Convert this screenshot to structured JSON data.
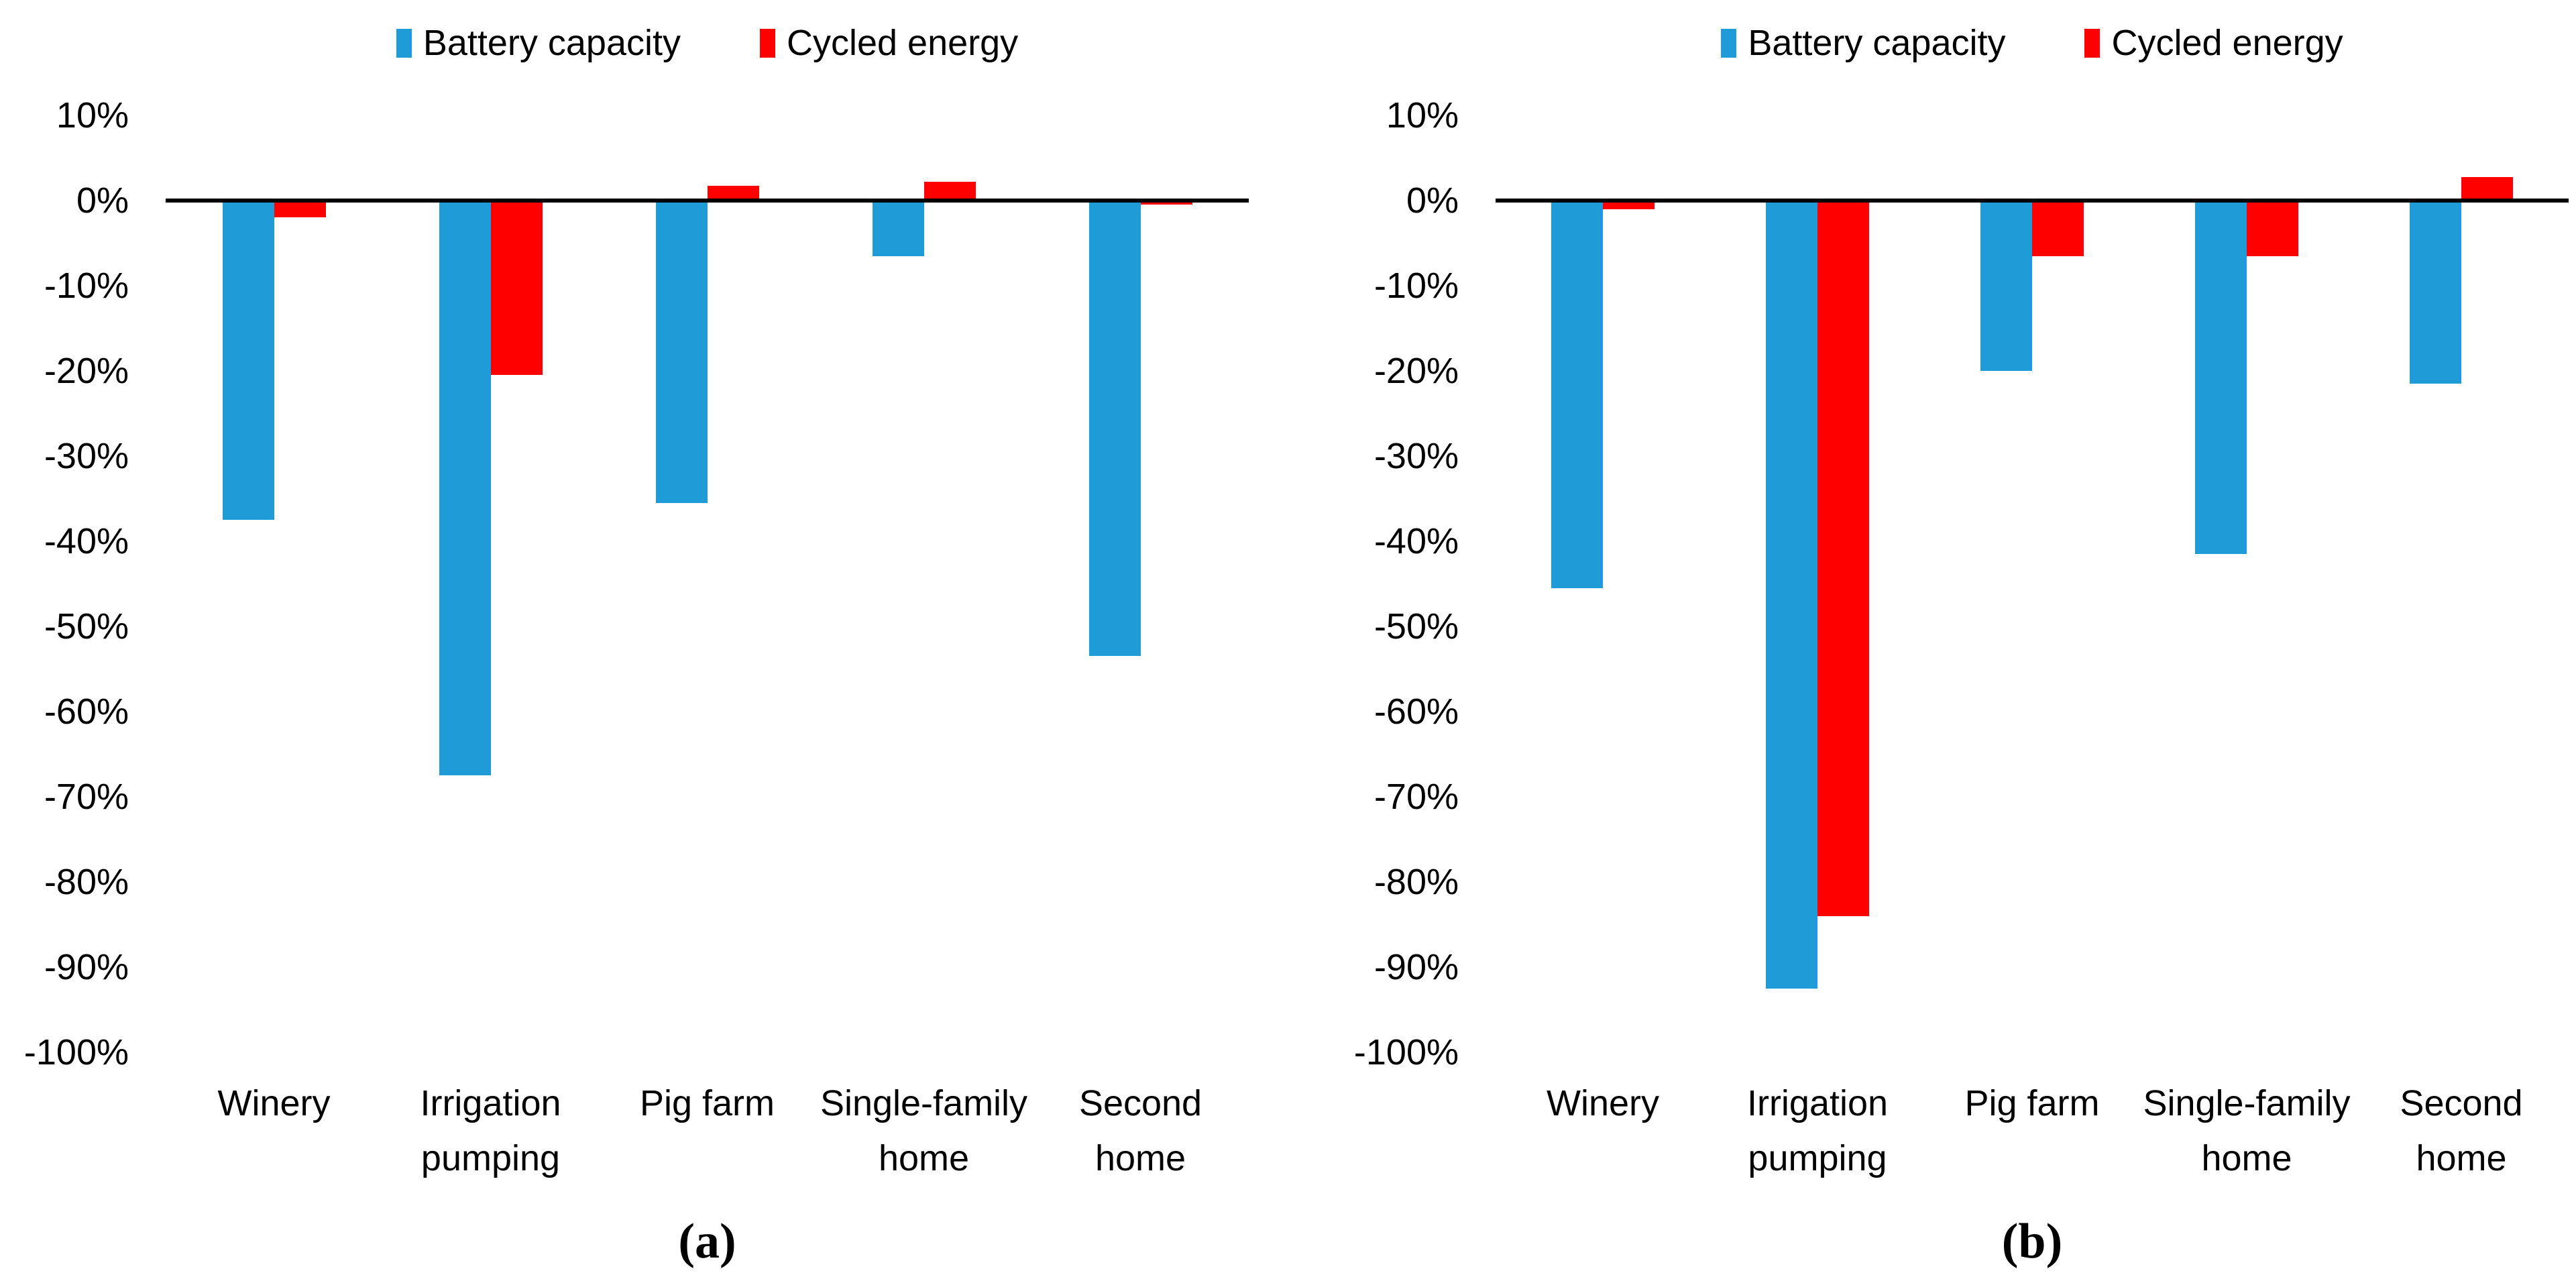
{
  "figure": {
    "background": "#ffffff",
    "axis_line_color": "#000000",
    "text_color": "#000000",
    "series_colors": {
      "battery_capacity": "#1F9BD7",
      "cycled_energy": "#FF0000"
    }
  },
  "legend": [
    {
      "label": "Battery capacity",
      "color": "#1F9BD7"
    },
    {
      "label": "Cycled energy",
      "color": "#FF0000"
    }
  ],
  "y_axis_ticks": [
    "10%",
    "0%",
    "-10%",
    "-20%",
    "-30%",
    "-40%",
    "-50%",
    "-60%",
    "-70%",
    "-80%",
    "-90%",
    "-100%"
  ],
  "categories_display": [
    "Winery",
    "Irrigation\npumping",
    "Pig farm",
    "Single-family\nhome",
    "Second\nhome"
  ],
  "chart_data": [
    {
      "type": "bar",
      "caption": "(a)",
      "title": "",
      "xlabel": "",
      "ylabel": "",
      "ylim": [
        -100,
        10
      ],
      "ytick_step": 10,
      "grid": false,
      "legend_position": "top-center",
      "zero_baseline": true,
      "categories": [
        "Winery",
        "Irrigation pumping",
        "Pig farm",
        "Single-family home",
        "Second home"
      ],
      "series": [
        {
          "name": "Battery capacity",
          "color": "#1F9BD7",
          "values": [
            -37.5,
            -67.5,
            -35.5,
            -6.5,
            -53.5
          ]
        },
        {
          "name": "Cycled energy",
          "color": "#FF0000",
          "values": [
            -2,
            -20.5,
            1.5,
            2,
            -0.5
          ]
        }
      ]
    },
    {
      "type": "bar",
      "caption": "(b)",
      "title": "",
      "xlabel": "",
      "ylabel": "",
      "ylim": [
        -100,
        10
      ],
      "ytick_step": 10,
      "grid": false,
      "legend_position": "top-center",
      "zero_baseline": true,
      "categories": [
        "Winery",
        "Irrigation pumping",
        "Pig farm",
        "Single-family home",
        "Second home"
      ],
      "series": [
        {
          "name": "Battery capacity",
          "color": "#1F9BD7",
          "values": [
            -45.5,
            -92.5,
            -20,
            -41.5,
            -21.5
          ]
        },
        {
          "name": "Cycled energy",
          "color": "#FF0000",
          "values": [
            -1,
            -84,
            -6.5,
            -6.5,
            2.5
          ]
        }
      ]
    }
  ]
}
